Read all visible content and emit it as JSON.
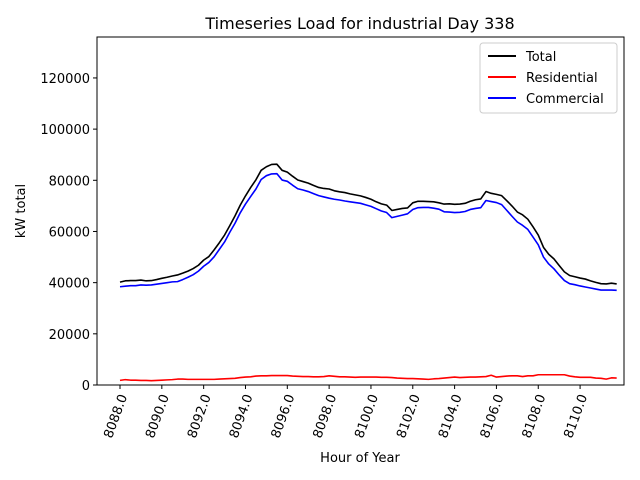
{
  "chart_data": {
    "type": "line",
    "title": "Timeseries Load for industrial   Day 338",
    "xlabel": "Hour of Year",
    "ylabel": "kW total",
    "xlim": [
      8086.9,
      8112.1
    ],
    "ylim": [
      0,
      136000
    ],
    "xticks": [
      8088,
      8090,
      8092,
      8094,
      8096,
      8098,
      8100,
      8102,
      8104,
      8106,
      8108,
      8110
    ],
    "xtick_labels": [
      "8088.0",
      "8090.0",
      "8092.0",
      "8094.0",
      "8096.0",
      "8098.0",
      "8100.0",
      "8102.0",
      "8104.0",
      "8106.0",
      "8108.0",
      "8110.0"
    ],
    "yticks": [
      0,
      20000,
      40000,
      60000,
      80000,
      100000,
      120000
    ],
    "ytick_labels": [
      "0",
      "20000",
      "40000",
      "60000",
      "80000",
      "100000",
      "120000"
    ],
    "legend_position": "top-right",
    "x": [
      8088.0,
      8088.25,
      8088.5,
      8088.75,
      8089.0,
      8089.25,
      8089.5,
      8089.75,
      8090.0,
      8090.25,
      8090.5,
      8090.75,
      8091.0,
      8091.25,
      8091.5,
      8091.75,
      8092.0,
      8092.25,
      8092.5,
      8092.75,
      8093.0,
      8093.25,
      8093.5,
      8093.75,
      8094.0,
      8094.25,
      8094.5,
      8094.75,
      8095.0,
      8095.25,
      8095.5,
      8095.75,
      8096.0,
      8096.25,
      8096.5,
      8096.75,
      8097.0,
      8097.25,
      8097.5,
      8097.75,
      8098.0,
      8098.25,
      8098.5,
      8098.75,
      8099.0,
      8099.25,
      8099.5,
      8099.75,
      8100.0,
      8100.25,
      8100.5,
      8100.75,
      8101.0,
      8101.25,
      8101.5,
      8101.75,
      8102.0,
      8102.25,
      8102.5,
      8102.75,
      8103.0,
      8103.25,
      8103.5,
      8103.75,
      8104.0,
      8104.25,
      8104.5,
      8104.75,
      8105.0,
      8105.25,
      8105.5,
      8105.75,
      8106.0,
      8106.25,
      8106.5,
      8106.75,
      8107.0,
      8107.25,
      8107.5,
      8107.75,
      8108.0,
      8108.25,
      8108.5,
      8108.75,
      8109.0,
      8109.25,
      8109.5,
      8109.75,
      8110.0,
      8110.25,
      8110.5,
      8110.75,
      8111.0,
      8111.25,
      8111.5,
      8111.75
    ],
    "series": [
      {
        "name": "Total",
        "color": "#000000",
        "values": [
          40200,
          40700,
          40800,
          40800,
          41000,
          40700,
          40800,
          41200,
          41700,
          42100,
          42600,
          43000,
          43700,
          44500,
          45500,
          46800,
          48800,
          50200,
          52800,
          55600,
          58600,
          62300,
          66100,
          70300,
          73900,
          77200,
          80200,
          83900,
          85300,
          86200,
          86300,
          83900,
          83200,
          81600,
          80100,
          79500,
          78900,
          78000,
          77200,
          76800,
          76600,
          75900,
          75500,
          75200,
          74700,
          74300,
          73900,
          73300,
          72600,
          71600,
          70800,
          70300,
          68200,
          68600,
          69000,
          69200,
          71200,
          71800,
          71800,
          71700,
          71600,
          71200,
          70700,
          70800,
          70600,
          70700,
          71000,
          71800,
          72400,
          72700,
          75600,
          74900,
          74500,
          74000,
          72000,
          69900,
          67600,
          66500,
          64800,
          61800,
          58600,
          53800,
          51100,
          49300,
          46700,
          44200,
          42800,
          42300,
          41800,
          41400,
          40700,
          40100,
          39600,
          39500,
          39800,
          39500
        ]
      },
      {
        "name": "Residential",
        "color": "#ff0000",
        "values": [
          1800,
          2100,
          1900,
          1900,
          1800,
          1800,
          1700,
          1800,
          1900,
          2000,
          2100,
          2300,
          2300,
          2200,
          2200,
          2200,
          2200,
          2200,
          2200,
          2300,
          2400,
          2500,
          2600,
          2900,
          3100,
          3200,
          3500,
          3600,
          3600,
          3700,
          3700,
          3700,
          3700,
          3500,
          3400,
          3300,
          3300,
          3200,
          3200,
          3300,
          3600,
          3400,
          3200,
          3200,
          3100,
          3000,
          3100,
          3100,
          3100,
          3100,
          3000,
          3000,
          2900,
          2700,
          2600,
          2500,
          2500,
          2400,
          2300,
          2200,
          2400,
          2500,
          2700,
          2900,
          3100,
          2900,
          3000,
          3100,
          3100,
          3200,
          3300,
          3800,
          3100,
          3300,
          3500,
          3600,
          3600,
          3300,
          3600,
          3600,
          4000,
          4000,
          4000,
          4000,
          4000,
          4000,
          3500,
          3200,
          3000,
          3000,
          3000,
          2700,
          2600,
          2300,
          2800,
          2700
        ]
      },
      {
        "name": "Commercial",
        "color": "#0000ff",
        "values": [
          38400,
          38600,
          38800,
          38800,
          39100,
          39000,
          39100,
          39400,
          39700,
          40000,
          40300,
          40400,
          41200,
          42100,
          43100,
          44500,
          46400,
          47900,
          50100,
          53000,
          55900,
          59700,
          63200,
          67300,
          70700,
          73700,
          76600,
          80300,
          81800,
          82500,
          82600,
          80100,
          79600,
          78100,
          76700,
          76200,
          75600,
          74800,
          74000,
          73500,
          73000,
          72600,
          72300,
          71900,
          71600,
          71300,
          71000,
          70400,
          69800,
          68900,
          68000,
          67400,
          65400,
          65900,
          66400,
          66900,
          68600,
          69300,
          69400,
          69400,
          69100,
          68700,
          67700,
          67600,
          67400,
          67500,
          67800,
          68600,
          69000,
          69300,
          72100,
          71700,
          71300,
          70500,
          68200,
          65900,
          63700,
          62400,
          60800,
          57800,
          54800,
          50000,
          47300,
          45400,
          43000,
          40800,
          39600,
          39200,
          38700,
          38300,
          37900,
          37500,
          37100,
          37100,
          37100,
          37000
        ]
      }
    ]
  }
}
